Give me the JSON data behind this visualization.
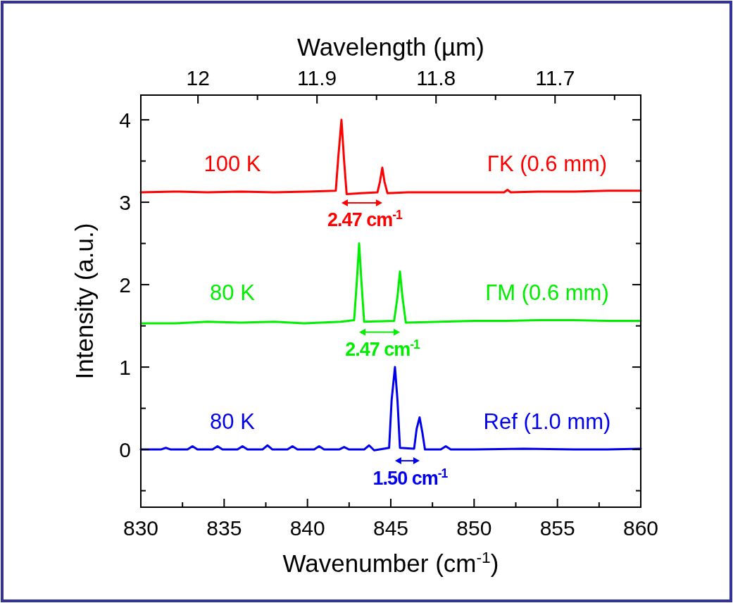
{
  "chart_data": {
    "type": "line",
    "xlabel": "Wavenumber (cm$^{-1}$)",
    "ylabel": "Intensity (a.u.)",
    "x2label": "Wavelength (µm)",
    "xlim": [
      830,
      860
    ],
    "xticks": [
      830,
      {
        "value": 832.5,
        "label": null
      },
      835,
      {
        "value": 837.5,
        "label": null
      },
      840,
      {
        "value": 842.5,
        "label": null
      },
      845,
      {
        "value": 847.5,
        "label": null
      },
      850,
      {
        "value": 852.5,
        "label": null
      },
      855,
      {
        "value": 857.5,
        "label": null
      },
      860
    ],
    "ylim": [
      -0.7,
      4.3
    ],
    "yticks": [
      {
        "value": -0.5,
        "label": null
      },
      0,
      {
        "value": 0.5,
        "label": null
      },
      1,
      {
        "value": 1.5,
        "label": null
      },
      2,
      {
        "value": 2.5,
        "label": null
      },
      3,
      {
        "value": 3.5,
        "label": null
      },
      4
    ],
    "x2lim": [
      12.048,
      11.628
    ],
    "x2ticks": [
      12,
      {
        "value": 11.95,
        "label": null
      },
      11.9,
      {
        "value": 11.85,
        "label": null
      },
      11.8,
      {
        "value": 11.75,
        "label": null
      },
      11.7,
      {
        "value": 11.65,
        "label": null
      }
    ],
    "grid": false,
    "marker": "none",
    "line_style": "solid",
    "series": [
      {
        "color": "#ff0000",
        "x": [
          830,
          832,
          834,
          836,
          838,
          840,
          841.7,
          841.85,
          842.04,
          842.2,
          842.35,
          844.2,
          844.35,
          844.49,
          844.62,
          844.8,
          846,
          848,
          850,
          851.8,
          852,
          852.2,
          854,
          856,
          858,
          860
        ],
        "values": [
          3.12,
          3.13,
          3.12,
          3.13,
          3.12,
          3.13,
          3.14,
          3.55,
          4.0,
          3.5,
          3.1,
          3.12,
          3.25,
          3.42,
          3.25,
          3.11,
          3.12,
          3.12,
          3.12,
          3.12,
          3.15,
          3.12,
          3.13,
          3.13,
          3.14,
          3.14
        ]
      },
      {
        "color": "#00ee00",
        "x": [
          830,
          832,
          834,
          836,
          838,
          839.8,
          842,
          842.8,
          842.95,
          843.1,
          843.25,
          843.4,
          845.2,
          845.4,
          845.55,
          845.7,
          845.9,
          848,
          850,
          852,
          854,
          856,
          858,
          860
        ],
        "values": [
          1.53,
          1.53,
          1.55,
          1.54,
          1.55,
          1.53,
          1.55,
          1.57,
          2.0,
          2.5,
          2.0,
          1.55,
          1.56,
          1.85,
          2.16,
          1.85,
          1.54,
          1.55,
          1.56,
          1.56,
          1.57,
          1.57,
          1.56,
          1.56
        ]
      },
      {
        "color": "#0000ee",
        "x": [
          830,
          831.2,
          831.5,
          831.8,
          832.8,
          833.1,
          833.4,
          834.3,
          834.6,
          834.9,
          835.8,
          836.1,
          836.4,
          837.3,
          837.6,
          837.9,
          838.8,
          839.1,
          839.4,
          840.4,
          840.7,
          841,
          841.9,
          842.2,
          842.5,
          843.4,
          843.7,
          844,
          844.9,
          845.05,
          845.25,
          845.4,
          845.55,
          846.4,
          846.55,
          846.73,
          846.9,
          847.05,
          848,
          848.3,
          848.6,
          850,
          853,
          856,
          858,
          860
        ],
        "values": [
          0,
          0,
          0.02,
          0,
          0,
          0.04,
          0,
          0,
          0.04,
          0,
          0,
          0.04,
          0,
          0,
          0.05,
          0,
          0,
          0.04,
          0,
          0,
          0.04,
          0,
          0,
          0.03,
          0,
          0,
          0.05,
          -0.01,
          0.02,
          0.6,
          1.0,
          0.6,
          0.02,
          0.01,
          0.25,
          0.39,
          0.2,
          0,
          0,
          0.04,
          0,
          0,
          0.01,
          0,
          0,
          0.01
        ]
      }
    ],
    "annotations": [
      "100 K",
      "ΓK (0.6 mm)",
      "2.47 cm$^{-1}$",
      "80 K",
      "ΓM (0.6 mm)",
      "2.47 cm$^{-1}$",
      "80 K",
      "Ref (1.0 mm)",
      "1.50 cm$^{-1}$"
    ]
  }
}
